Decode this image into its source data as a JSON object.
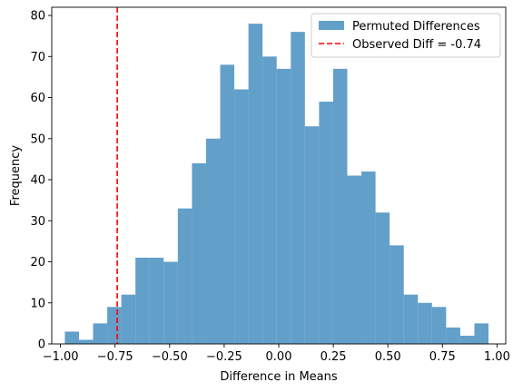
{
  "chart_data": {
    "type": "bar",
    "subtype": "histogram",
    "title": "",
    "xlabel": "Difference in Means",
    "ylabel": "Frequency",
    "xlim": [
      -1.04,
      1.04
    ],
    "ylim": [
      0,
      82
    ],
    "xticks": [
      -1.0,
      -0.75,
      -0.5,
      -0.25,
      0.0,
      0.25,
      0.5,
      0.75,
      1.0
    ],
    "xtick_labels": [
      "−1.00",
      "−0.75",
      "−0.50",
      "−0.25",
      "0.00",
      "0.25",
      "0.50",
      "0.75",
      "1.00"
    ],
    "yticks": [
      0,
      10,
      20,
      30,
      40,
      50,
      60,
      70,
      80
    ],
    "ytick_labels": [
      "0",
      "10",
      "20",
      "30",
      "40",
      "50",
      "60",
      "70",
      "80"
    ],
    "bin_start": -0.98,
    "bin_width": 0.0647,
    "counts": [
      3,
      1,
      5,
      9,
      12,
      21,
      21,
      20,
      33,
      44,
      50,
      68,
      62,
      78,
      70,
      67,
      76,
      53,
      59,
      67,
      41,
      42,
      32,
      24,
      12,
      10,
      9,
      4,
      2,
      5
    ],
    "bar_color": "#1f77b4",
    "bar_alpha": 0.7,
    "observed_line": {
      "x": -0.74,
      "color": "#ff0000",
      "style": "dashed"
    },
    "legend": {
      "position": "upper right",
      "entries": [
        {
          "label": "Permuted Differences",
          "kind": "patch",
          "color": "#1f77b4"
        },
        {
          "label": "Observed Diff = -0.74",
          "kind": "dashed-line",
          "color": "#ff0000"
        }
      ]
    },
    "grid": false
  }
}
